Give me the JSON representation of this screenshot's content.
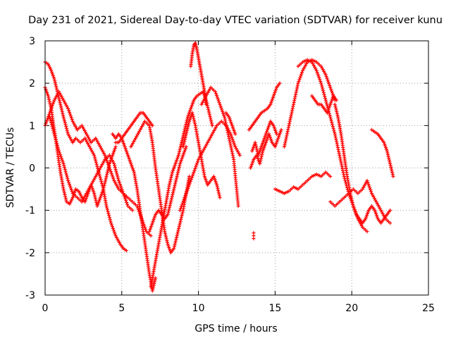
{
  "chart_data": {
    "type": "scatter",
    "title": "Day 231 of 2021, Sidereal Day-to-day VTEC variation (SDTVAR) for receiver kunu",
    "xlabel": "GPS time / hours",
    "ylabel": "SDTVAR / TECUs",
    "xlim": [
      0,
      25
    ],
    "ylim": [
      -3,
      3
    ],
    "xticks": [
      0,
      5,
      10,
      15,
      20,
      25
    ],
    "yticks": [
      -3,
      -2,
      -1,
      0,
      1,
      2,
      3
    ],
    "grid": true,
    "marker": "plus",
    "color": "#ff0000",
    "series": [
      {
        "x": [
          0.0,
          0.2,
          0.4,
          0.6,
          0.8,
          1.0,
          1.2,
          1.5,
          1.8,
          2.0,
          2.3,
          2.6,
          2.9,
          3.2,
          3.5,
          3.8,
          4.0,
          4.3,
          4.6,
          4.9,
          5.1,
          5.3
        ],
        "y": [
          2.5,
          2.45,
          2.3,
          2.1,
          1.8,
          1.5,
          1.2,
          0.8,
          0.6,
          0.7,
          0.6,
          0.7,
          0.5,
          0.3,
          -0.1,
          -0.5,
          -0.9,
          -1.3,
          -1.6,
          -1.8,
          -1.9,
          -1.95
        ]
      },
      {
        "x": [
          0.0,
          0.2,
          0.4,
          0.6,
          0.8,
          1.0,
          1.2,
          1.4,
          1.6,
          1.8,
          2.0,
          2.2,
          2.4,
          2.6,
          2.8,
          3.0,
          3.2,
          3.4,
          3.6,
          3.8,
          4.0,
          4.2,
          4.4,
          4.6
        ],
        "y": [
          1.9,
          1.7,
          1.4,
          0.9,
          0.4,
          -0.1,
          -0.5,
          -0.8,
          -0.85,
          -0.7,
          -0.5,
          -0.55,
          -0.7,
          -0.8,
          -0.6,
          -0.4,
          -0.6,
          -0.9,
          -0.7,
          -0.5,
          -0.2,
          0.1,
          0.3,
          0.5
        ]
      },
      {
        "x": [
          0.0,
          0.3,
          0.6,
          0.9,
          1.2,
          1.5,
          1.8,
          2.1,
          2.4,
          2.7,
          3.0,
          3.3,
          3.6,
          3.9,
          4.2,
          4.5,
          4.8,
          5.1,
          5.4,
          5.7,
          6.0,
          6.3,
          6.6,
          6.9
        ],
        "y": [
          1.0,
          1.3,
          1.6,
          1.8,
          1.6,
          1.4,
          1.1,
          0.9,
          1.0,
          0.8,
          0.6,
          0.7,
          0.5,
          0.3,
          0.0,
          -0.3,
          -0.5,
          -0.6,
          -0.7,
          -0.8,
          -0.9,
          -1.2,
          -1.5,
          -1.6
        ]
      },
      {
        "x": [
          0.3,
          0.6,
          0.9,
          1.2,
          1.5,
          1.8,
          2.1,
          2.4,
          2.7,
          3.0,
          3.3,
          3.6,
          3.9,
          4.2,
          4.5,
          4.8,
          5.1,
          5.4,
          5.7
        ],
        "y": [
          1.2,
          0.8,
          0.4,
          0.1,
          -0.3,
          -0.6,
          -0.7,
          -0.8,
          -0.6,
          -0.4,
          -0.2,
          0.0,
          0.2,
          0.3,
          0.1,
          -0.3,
          -0.6,
          -0.9,
          -1.0
        ]
      },
      {
        "x": [
          4.4,
          4.6,
          4.8,
          5.0,
          5.2,
          5.4,
          5.6,
          5.8,
          6.0,
          6.2,
          6.4,
          6.6,
          6.8,
          7.0,
          7.2
        ],
        "y": [
          0.8,
          0.7,
          0.8,
          0.7,
          0.5,
          0.3,
          0.1,
          -0.1,
          -0.5,
          -1.0,
          -1.5,
          -2.0,
          -2.5,
          -2.9,
          -2.6
        ]
      },
      {
        "x": [
          4.6,
          4.8,
          5.0,
          5.2,
          5.4,
          5.6,
          5.8,
          6.0,
          6.2,
          6.4,
          6.6,
          6.8,
          7.0
        ],
        "y": [
          0.6,
          0.6,
          0.7,
          0.8,
          0.9,
          1.0,
          1.1,
          1.2,
          1.3,
          1.3,
          1.2,
          1.1,
          1.0
        ]
      },
      {
        "x": [
          5.6,
          5.9,
          6.2,
          6.5,
          6.8,
          7.0,
          7.2,
          7.4,
          7.6,
          7.8,
          8.0,
          8.2,
          8.4,
          8.6,
          8.8,
          9.0,
          9.2,
          9.4
        ],
        "y": [
          0.5,
          0.7,
          0.9,
          1.1,
          1.0,
          0.6,
          0.0,
          -0.5,
          -1.0,
          -1.5,
          -1.8,
          -2.0,
          -1.9,
          -1.6,
          -1.3,
          -1.0,
          -0.6,
          -0.2
        ]
      },
      {
        "x": [
          6.9,
          7.1,
          7.3,
          7.5,
          7.7,
          7.9,
          8.1,
          8.3,
          8.5,
          8.7,
          8.9,
          9.1,
          9.3,
          9.5,
          9.7,
          9.9,
          10.1,
          10.3,
          10.5,
          10.7,
          10.9
        ],
        "y": [
          -2.8,
          -2.4,
          -2.0,
          -1.6,
          -1.2,
          -0.8,
          -0.4,
          -0.1,
          0.1,
          0.3,
          0.6,
          0.9,
          1.2,
          1.4,
          1.6,
          1.7,
          1.75,
          1.8,
          1.6,
          1.3,
          1.0
        ]
      },
      {
        "x": [
          6.8,
          7.0,
          7.2,
          7.4,
          7.6,
          7.8,
          8.0,
          8.2,
          8.4,
          8.6,
          8.8,
          9.0,
          9.2
        ],
        "y": [
          -1.5,
          -1.3,
          -1.1,
          -1.0,
          -1.1,
          -1.2,
          -1.1,
          -0.8,
          -0.5,
          -0.2,
          0.1,
          0.3,
          0.5
        ]
      },
      {
        "x": [
          9.5,
          9.6,
          9.7,
          9.8,
          9.9,
          10.0,
          10.1,
          10.2,
          10.3,
          10.4,
          10.5
        ],
        "y": [
          2.4,
          2.7,
          2.9,
          2.95,
          2.8,
          2.6,
          2.4,
          2.2,
          2.0,
          1.8,
          1.5
        ]
      },
      {
        "x": [
          8.8,
          9.1,
          9.4,
          9.7,
          10.0,
          10.3,
          10.6,
          10.9,
          11.2,
          11.5,
          11.8,
          12.1,
          12.4,
          12.7
        ],
        "y": [
          -1.0,
          -0.7,
          -0.4,
          -0.1,
          0.2,
          0.4,
          0.6,
          0.8,
          1.0,
          1.1,
          1.0,
          0.8,
          0.5,
          0.3
        ]
      },
      {
        "x": [
          9.0,
          9.2,
          9.4,
          9.6,
          9.8,
          10.0,
          10.2,
          10.4,
          10.6,
          10.8,
          11.0,
          11.2,
          11.4
        ],
        "y": [
          0.5,
          0.8,
          1.1,
          1.3,
          1.0,
          0.6,
          0.2,
          -0.2,
          -0.4,
          -0.3,
          -0.2,
          -0.4,
          -0.7
        ]
      },
      {
        "x": [
          10.2,
          10.5,
          10.8,
          11.1,
          11.4,
          11.7,
          12.0,
          12.3,
          12.6
        ],
        "y": [
          1.5,
          1.7,
          1.9,
          1.8,
          1.5,
          1.2,
          0.7,
          0.2,
          -0.9
        ]
      },
      {
        "x": [
          11.8,
          12.0,
          12.2,
          12.4
        ],
        "y": [
          1.3,
          1.2,
          1.0,
          0.8
        ]
      },
      {
        "x": [
          13.3,
          13.5,
          13.7,
          13.9,
          14.1,
          14.3,
          14.5,
          14.7,
          14.9,
          15.1,
          15.3
        ],
        "y": [
          0.9,
          1.0,
          1.1,
          1.2,
          1.3,
          1.35,
          1.4,
          1.5,
          1.7,
          1.9,
          2.0
        ]
      },
      {
        "x": [
          13.5,
          13.7,
          13.9,
          14.1,
          14.3,
          14.5,
          14.7,
          14.9,
          15.1
        ],
        "y": [
          0.4,
          0.6,
          0.3,
          0.5,
          0.7,
          0.9,
          1.1,
          1.0,
          0.8
        ]
      },
      {
        "x": [
          13.4,
          13.6,
          13.8,
          14.0,
          14.2,
          14.4,
          14.6,
          14.8,
          15.0,
          15.2,
          15.4
        ],
        "y": [
          0.0,
          0.2,
          0.3,
          0.1,
          0.4,
          0.6,
          0.8,
          0.6,
          0.5,
          0.7,
          0.9
        ]
      },
      {
        "x": [
          13.6
        ],
        "y": [
          -1.6
        ]
      },
      {
        "x": [
          15.0,
          15.3,
          15.6,
          15.9,
          16.2,
          16.5,
          16.8,
          17.1,
          17.4,
          17.7,
          18.0,
          18.3,
          18.6
        ],
        "y": [
          -0.5,
          -0.55,
          -0.6,
          -0.55,
          -0.45,
          -0.5,
          -0.4,
          -0.3,
          -0.2,
          -0.15,
          -0.2,
          -0.1,
          -0.2
        ]
      },
      {
        "x": [
          15.6,
          15.9,
          16.2,
          16.5,
          16.8,
          17.1,
          17.4,
          17.7,
          18.0,
          18.3,
          18.6,
          18.9
        ],
        "y": [
          0.5,
          1.0,
          1.5,
          2.0,
          2.3,
          2.5,
          2.55,
          2.5,
          2.4,
          2.2,
          1.9,
          1.6
        ]
      },
      {
        "x": [
          16.5,
          16.8,
          17.1,
          17.4,
          17.7,
          18.0,
          18.3,
          18.6,
          18.9,
          19.2,
          19.5,
          19.8,
          20.1,
          20.4,
          20.7,
          21.0
        ],
        "y": [
          2.4,
          2.5,
          2.55,
          2.5,
          2.3,
          2.0,
          1.6,
          1.2,
          0.8,
          0.3,
          -0.2,
          -0.6,
          -0.9,
          -1.2,
          -1.4,
          -1.5
        ]
      },
      {
        "x": [
          17.4,
          17.6,
          17.8,
          18.0,
          18.2,
          18.4,
          18.6,
          18.8,
          19.0
        ],
        "y": [
          1.7,
          1.6,
          1.5,
          1.5,
          1.4,
          1.3,
          1.5,
          1.7,
          1.6
        ]
      },
      {
        "x": [
          18.9,
          19.1,
          19.3,
          19.5,
          19.7,
          19.9,
          20.1,
          20.3,
          20.5,
          20.7,
          20.9,
          21.1,
          21.3,
          21.5,
          21.7,
          21.9,
          22.1,
          22.3,
          22.5
        ],
        "y": [
          1.5,
          1.2,
          0.8,
          0.3,
          -0.2,
          -0.6,
          -0.9,
          -1.1,
          -1.2,
          -1.3,
          -1.2,
          -1.0,
          -0.9,
          -1.0,
          -1.2,
          -1.3,
          -1.2,
          -1.1,
          -1.0
        ]
      },
      {
        "x": [
          18.6,
          18.9,
          19.2,
          19.5,
          19.8,
          20.1,
          20.4,
          20.7,
          21.0,
          21.3,
          21.6,
          21.9,
          22.2,
          22.5
        ],
        "y": [
          -0.8,
          -0.9,
          -0.8,
          -0.7,
          -0.6,
          -0.5,
          -0.6,
          -0.5,
          -0.3,
          -0.6,
          -0.8,
          -1.0,
          -1.2,
          -1.3
        ]
      },
      {
        "x": [
          21.3,
          21.5,
          21.7,
          21.9,
          22.1,
          22.3,
          22.5,
          22.7
        ],
        "y": [
          0.9,
          0.85,
          0.8,
          0.7,
          0.6,
          0.4,
          0.1,
          -0.2
        ]
      }
    ]
  }
}
